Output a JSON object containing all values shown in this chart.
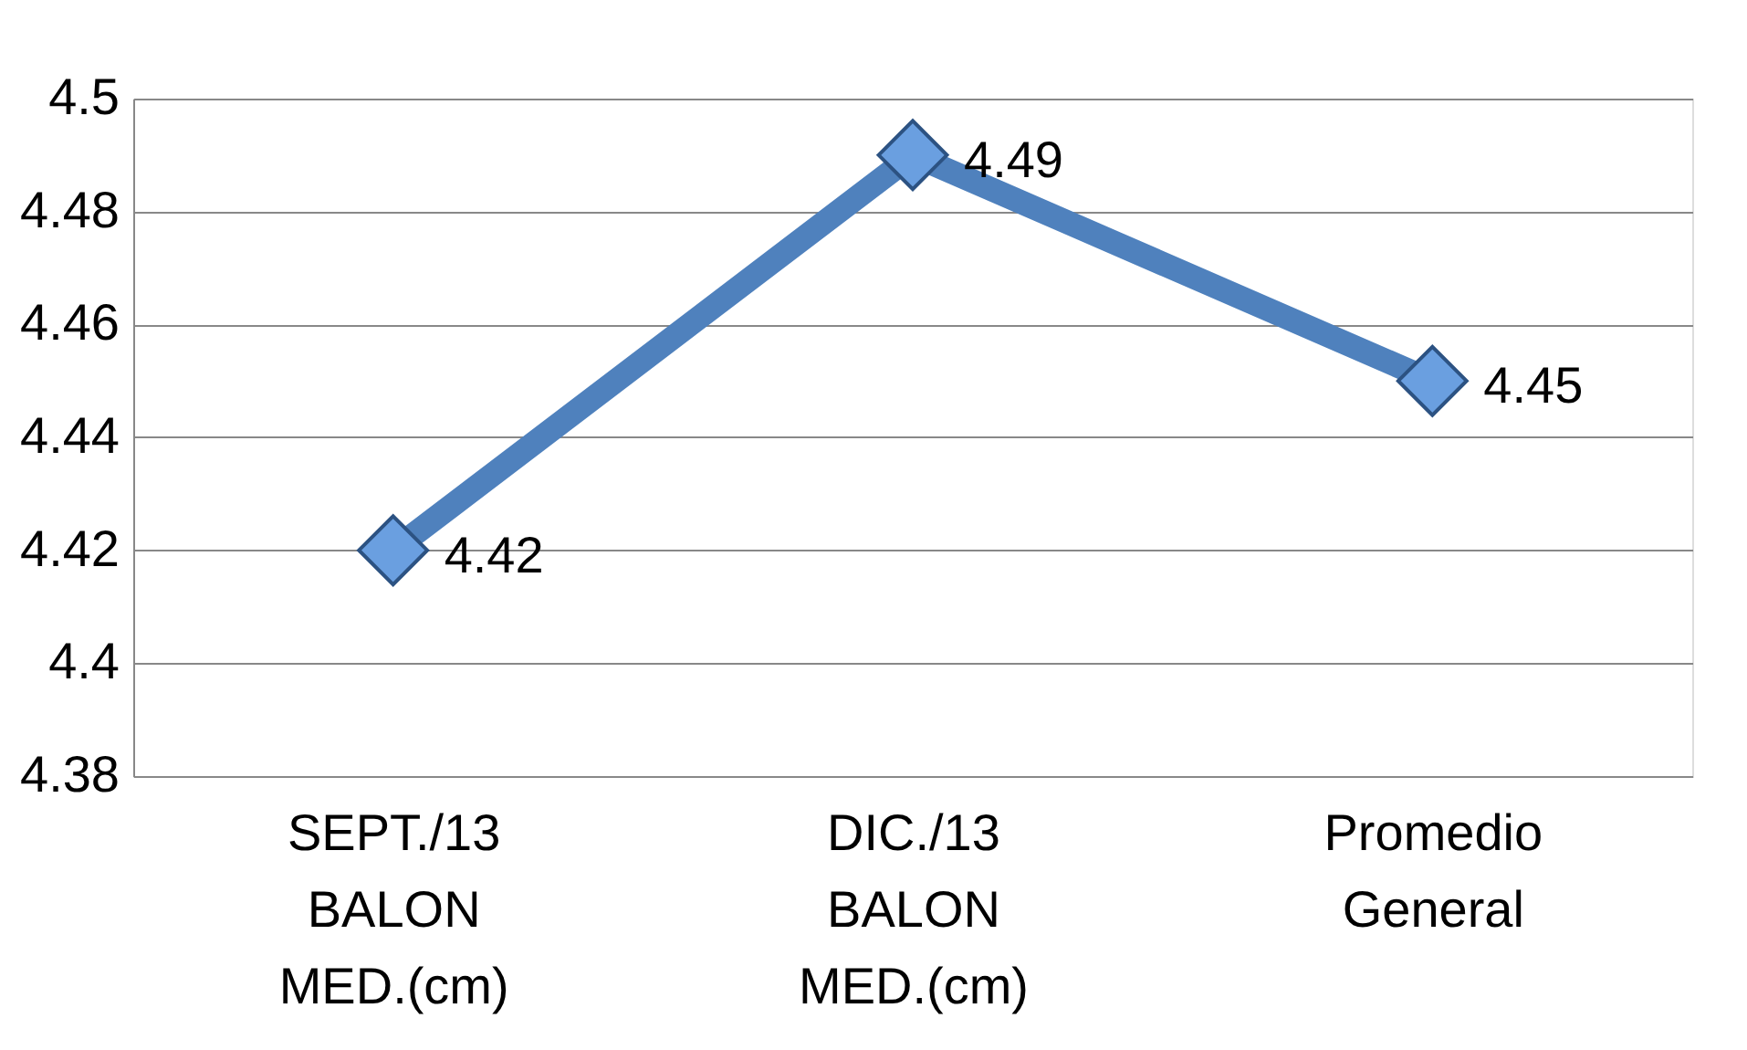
{
  "chart_data": {
    "type": "line",
    "categories": [
      "SEPT./13 BALON MED.(cm)",
      "DIC./13 BALON MED.(cm)",
      "Promedio General"
    ],
    "series": [
      {
        "color": "#4f81bd",
        "values": [
          4.42,
          4.49,
          4.45
        ]
      }
    ],
    "ylim": [
      4.38,
      4.5
    ],
    "yticks": [
      4.38,
      4.4,
      4.42,
      4.44,
      4.46,
      4.48,
      4.5
    ],
    "grid": "y",
    "marker": "diamond",
    "line_style": "solid",
    "data_labels": true,
    "legend": false
  }
}
